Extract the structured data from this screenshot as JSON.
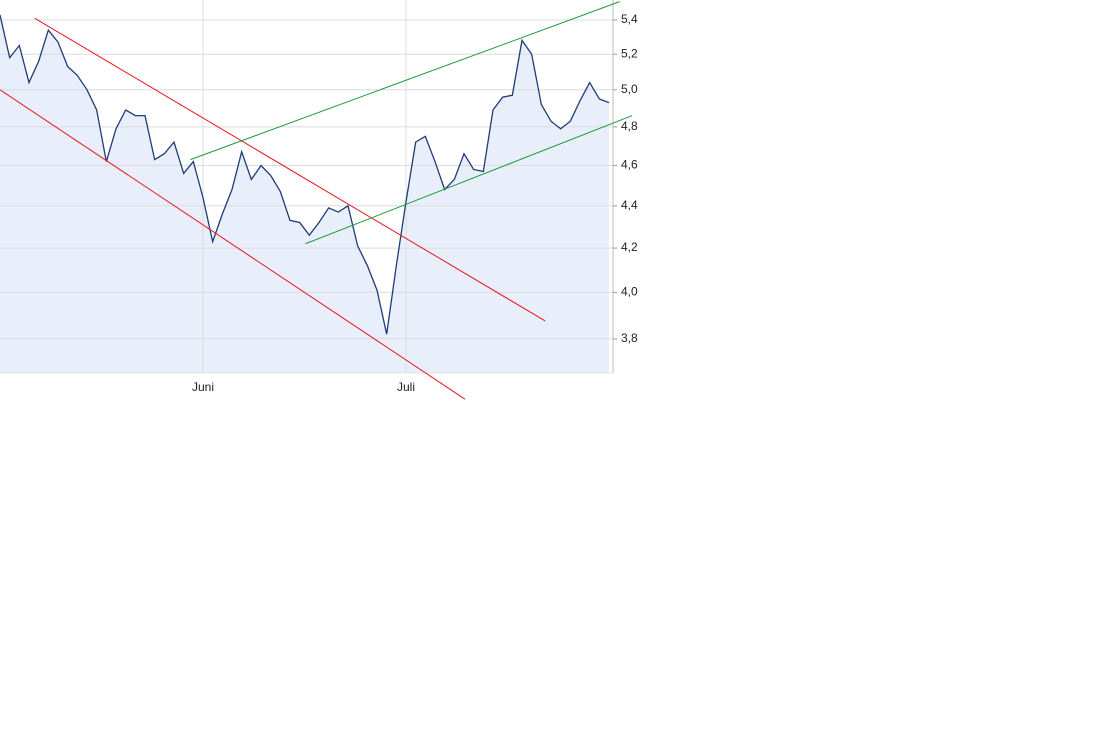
{
  "chart_data": {
    "type": "area",
    "log_scale": true,
    "grid": true,
    "categories": [
      null,
      null,
      null,
      null,
      null,
      null,
      null,
      null,
      null,
      null,
      null,
      null,
      null,
      null,
      null,
      null,
      null,
      null,
      null,
      null,
      null,
      "Juni",
      null,
      null,
      null,
      null,
      null,
      null,
      null,
      null,
      null,
      null,
      null,
      null,
      null,
      null,
      null,
      null,
      null,
      null,
      null,
      null,
      "Juli",
      null,
      null,
      null,
      null,
      null,
      null,
      null,
      null,
      null,
      null,
      null,
      null,
      null,
      null,
      null,
      null,
      null,
      null,
      null,
      null,
      null
    ],
    "values": [
      5.43,
      5.18,
      5.25,
      5.04,
      5.16,
      5.34,
      5.27,
      5.13,
      5.08,
      5.0,
      4.89,
      4.62,
      4.79,
      4.89,
      4.86,
      4.86,
      4.63,
      4.66,
      4.72,
      4.56,
      4.62,
      4.44,
      4.23,
      4.36,
      4.48,
      4.67,
      4.53,
      4.6,
      4.55,
      4.47,
      4.33,
      4.32,
      4.26,
      4.32,
      4.39,
      4.37,
      4.4,
      4.21,
      4.12,
      4.01,
      3.82,
      4.12,
      4.42,
      4.72,
      4.75,
      4.62,
      4.48,
      4.53,
      4.66,
      4.58,
      4.57,
      4.89,
      4.96,
      4.97,
      5.28,
      5.2,
      4.92,
      4.83,
      4.79,
      4.83,
      4.94,
      5.04,
      4.95,
      4.93
    ],
    "color": "#1f3c78",
    "area_color": "#e8eefa",
    "ylim": [
      3.66,
      5.52
    ],
    "yticks": [
      {
        "value": 3.8,
        "label": "3,8"
      },
      {
        "value": 4.0,
        "label": "4,0"
      },
      {
        "value": 4.2,
        "label": "4,2"
      },
      {
        "value": 4.4,
        "label": "4,4"
      },
      {
        "value": 4.6,
        "label": "4,6"
      },
      {
        "value": 4.8,
        "label": "4,8"
      },
      {
        "value": 5.0,
        "label": "5,0"
      },
      {
        "value": 5.2,
        "label": "5,2"
      },
      {
        "value": 5.4,
        "label": "5,4"
      }
    ],
    "trend_lines": [
      {
        "color": "#e8141e",
        "x": [
          3.6,
          56.4
        ],
        "values": [
          5.41,
          3.876
        ]
      },
      {
        "color": "#e8141e",
        "x": [
          0,
          48.1
        ],
        "values": [
          5.0,
          3.556
        ]
      },
      {
        "color": "#1e9a3c",
        "x": [
          19.7,
          64.1
        ],
        "values": [
          4.63,
          5.51
        ]
      },
      {
        "color": "#1e9a3c",
        "x": [
          31.6,
          65.4
        ],
        "values": [
          4.22,
          4.86
        ]
      }
    ]
  }
}
